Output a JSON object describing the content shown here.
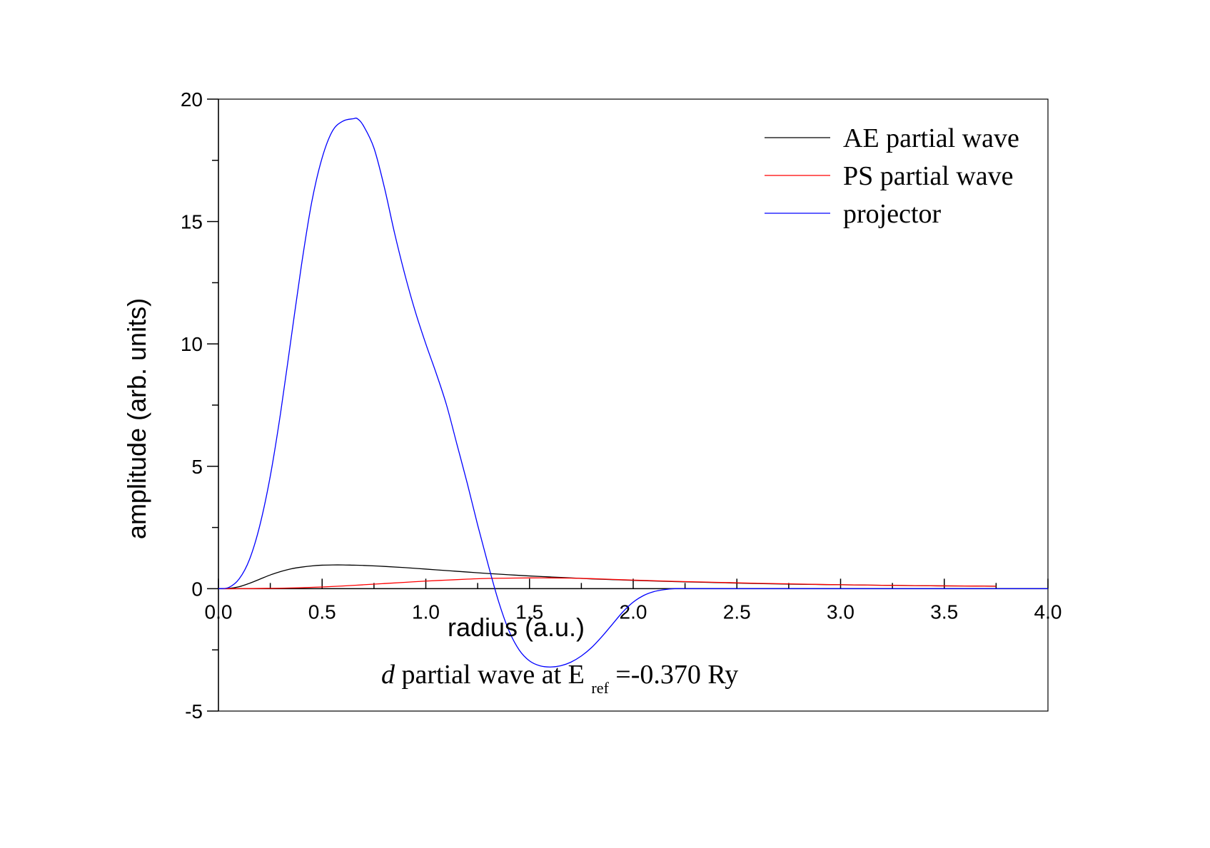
{
  "chart_data": {
    "type": "line",
    "title": "",
    "xlabel": "radius (a.u.)",
    "ylabel": "amplitude (arb. units)",
    "xlim": [
      0.0,
      4.0
    ],
    "ylim": [
      -5,
      20
    ],
    "x_ticks": [
      "0.0",
      "0.5",
      "1.0",
      "1.5",
      "2.0",
      "2.5",
      "3.0",
      "3.5",
      "4.0"
    ],
    "y_ticks": [
      "-5",
      "0",
      "5",
      "10",
      "15",
      "20"
    ],
    "grid": false,
    "legend_position": "top-right",
    "annotation": {
      "italic": "d",
      "text": " partial wave at E",
      "subscript": "ref",
      "tail": "=-0.370 Ry"
    },
    "series": [
      {
        "name": "AE partial wave",
        "color": "#000000",
        "x": [
          0.0,
          0.05,
          0.1,
          0.15,
          0.2,
          0.25,
          0.3,
          0.35,
          0.4,
          0.45,
          0.5,
          0.55,
          0.6,
          0.65,
          0.7,
          0.8,
          0.9,
          1.0,
          1.1,
          1.2,
          1.3,
          1.4,
          1.5,
          1.6,
          1.7,
          1.8,
          1.9,
          2.0,
          2.2,
          2.4,
          2.6,
          2.8,
          3.0,
          3.2,
          3.4,
          3.6,
          3.75
        ],
        "y": [
          0.0,
          0.01,
          0.08,
          0.22,
          0.39,
          0.56,
          0.7,
          0.81,
          0.88,
          0.93,
          0.96,
          0.97,
          0.97,
          0.96,
          0.95,
          0.91,
          0.86,
          0.8,
          0.74,
          0.68,
          0.62,
          0.57,
          0.52,
          0.48,
          0.44,
          0.4,
          0.37,
          0.34,
          0.29,
          0.25,
          0.21,
          0.18,
          0.16,
          0.14,
          0.12,
          0.11,
          0.1
        ]
      },
      {
        "name": "PS partial wave",
        "color": "#ff0000",
        "x": [
          0.0,
          0.1,
          0.2,
          0.3,
          0.4,
          0.5,
          0.6,
          0.7,
          0.8,
          0.9,
          1.0,
          1.1,
          1.2,
          1.3,
          1.4,
          1.5,
          1.6,
          1.7,
          1.8,
          1.9,
          2.0,
          2.2,
          2.4,
          2.6,
          2.8,
          3.0,
          3.2,
          3.4,
          3.6,
          3.75
        ],
        "y": [
          0.0,
          0.0,
          0.01,
          0.02,
          0.04,
          0.07,
          0.11,
          0.16,
          0.21,
          0.26,
          0.31,
          0.35,
          0.39,
          0.42,
          0.43,
          0.44,
          0.44,
          0.43,
          0.41,
          0.38,
          0.35,
          0.3,
          0.26,
          0.22,
          0.19,
          0.16,
          0.14,
          0.12,
          0.11,
          0.1
        ]
      },
      {
        "name": "projector",
        "color": "#0000ff",
        "x": [
          0.0,
          0.05,
          0.1,
          0.15,
          0.2,
          0.25,
          0.3,
          0.35,
          0.4,
          0.45,
          0.5,
          0.55,
          0.6,
          0.65,
          0.67,
          0.7,
          0.75,
          0.8,
          0.85,
          0.9,
          0.95,
          1.0,
          1.05,
          1.1,
          1.15,
          1.2,
          1.25,
          1.3,
          1.35,
          1.4,
          1.45,
          1.5,
          1.55,
          1.6,
          1.65,
          1.7,
          1.75,
          1.8,
          1.85,
          1.9,
          1.95,
          2.0,
          2.05,
          2.1,
          2.15,
          2.2,
          2.25,
          2.5,
          3.0,
          3.5,
          4.0
        ],
        "y": [
          0.0,
          0.05,
          0.4,
          1.2,
          2.6,
          4.6,
          7.2,
          10.2,
          13.2,
          15.8,
          17.6,
          18.7,
          19.1,
          19.2,
          19.2,
          18.9,
          18.0,
          16.4,
          14.5,
          12.8,
          11.3,
          10.0,
          8.8,
          7.5,
          5.9,
          4.3,
          2.6,
          1.0,
          -0.5,
          -1.7,
          -2.5,
          -2.95,
          -3.15,
          -3.2,
          -3.15,
          -3.0,
          -2.75,
          -2.4,
          -1.95,
          -1.45,
          -0.95,
          -0.55,
          -0.28,
          -0.12,
          -0.04,
          0.0,
          0.0,
          0.0,
          0.0,
          0.0,
          0.0
        ]
      }
    ]
  }
}
